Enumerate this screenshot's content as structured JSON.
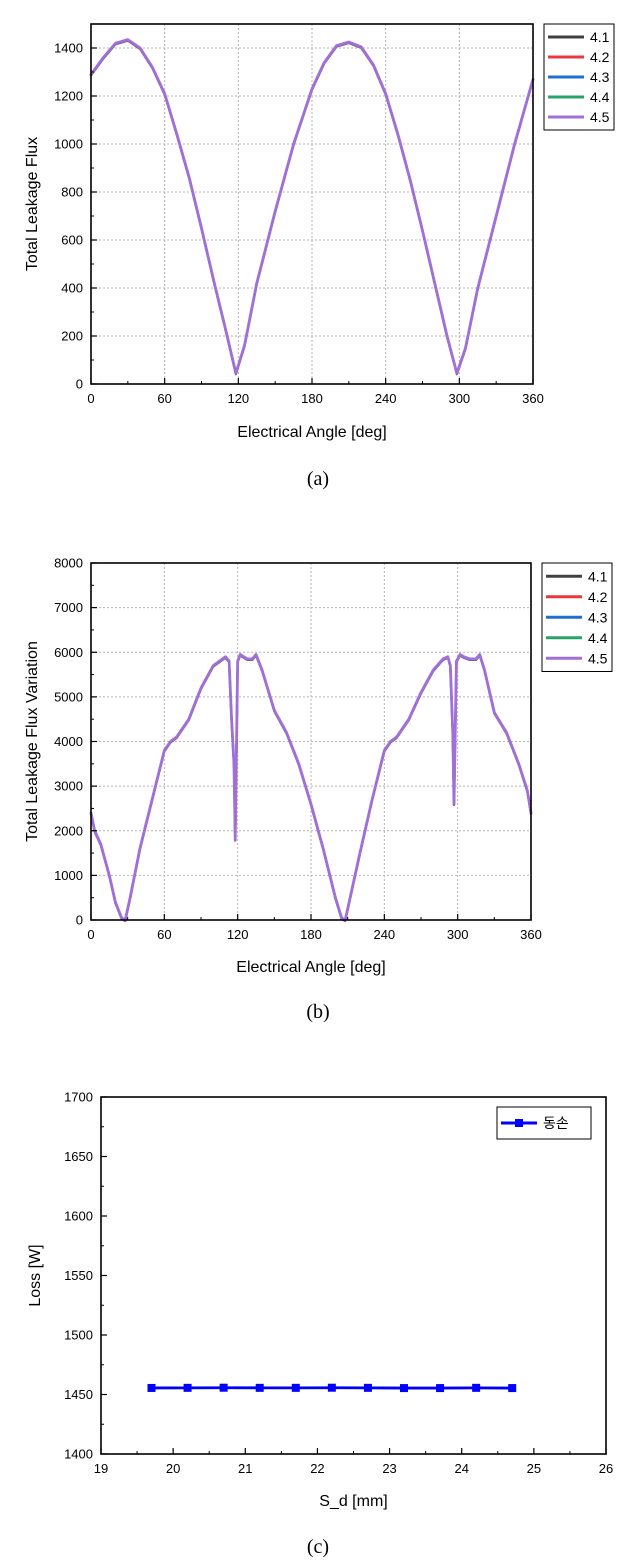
{
  "chart_data": [
    {
      "type": "line",
      "caption": "(a)",
      "xlabel": "Electrical Angle [deg]",
      "ylabel": "Total Leakage Flux",
      "xlim": [
        0,
        360
      ],
      "ylim": [
        0,
        1500
      ],
      "xticks": [
        "0",
        "60",
        "120",
        "180",
        "240",
        "300",
        "360"
      ],
      "yticks": [
        "0",
        "200",
        "400",
        "600",
        "800",
        "1000",
        "1200",
        "1400"
      ],
      "grid": true,
      "legend_position": "outside-right-top",
      "series": [
        {
          "name": "4.1",
          "color": "#404040"
        },
        {
          "name": "4.2",
          "color": "#e8383d"
        },
        {
          "name": "4.3",
          "color": "#1f6fd1"
        },
        {
          "name": "4.4",
          "color": "#2aa36b"
        },
        {
          "name": "4.5",
          "color": "#a070d8"
        }
      ],
      "x": [
        0,
        10,
        20,
        30,
        40,
        50,
        60,
        70,
        80,
        90,
        100,
        110,
        118,
        125,
        135,
        150,
        165,
        180,
        190,
        200,
        210,
        220,
        230,
        240,
        250,
        260,
        270,
        280,
        290,
        298,
        305,
        315,
        330,
        345,
        360
      ],
      "y": [
        1290,
        1360,
        1420,
        1435,
        1400,
        1320,
        1210,
        1040,
        860,
        650,
        430,
        220,
        45,
        160,
        420,
        720,
        1000,
        1230,
        1340,
        1410,
        1425,
        1405,
        1330,
        1210,
        1040,
        850,
        640,
        420,
        200,
        45,
        150,
        400,
        700,
        1000,
        1270
      ]
    },
    {
      "type": "line",
      "caption": "(b)",
      "xlabel": "Electrical Angle [deg]",
      "ylabel": "Total Leakage Flux Variation",
      "xlim": [
        0,
        360
      ],
      "ylim": [
        0,
        8000
      ],
      "xticks": [
        "0",
        "60",
        "120",
        "180",
        "240",
        "300",
        "360"
      ],
      "yticks": [
        "0",
        "1000",
        "2000",
        "3000",
        "4000",
        "5000",
        "6000",
        "7000",
        "8000"
      ],
      "grid": true,
      "legend_position": "outside-right-top",
      "series": [
        {
          "name": "4.1",
          "color": "#404040"
        },
        {
          "name": "4.2",
          "color": "#e8383d"
        },
        {
          "name": "4.3",
          "color": "#1f6fd1"
        },
        {
          "name": "4.4",
          "color": "#2aa36b"
        },
        {
          "name": "4.5",
          "color": "#a070d8"
        }
      ],
      "x": [
        0,
        3,
        8,
        15,
        20,
        25,
        28,
        32,
        40,
        50,
        60,
        65,
        70,
        80,
        90,
        100,
        110,
        113,
        115,
        117,
        118,
        120,
        122,
        125,
        128,
        132,
        135,
        140,
        150,
        160,
        170,
        180,
        190,
        200,
        205,
        208,
        212,
        220,
        230,
        240,
        245,
        250,
        260,
        270,
        280,
        288,
        292,
        294,
        296,
        297,
        299,
        302,
        305,
        310,
        315,
        318,
        322,
        330,
        340,
        350,
        357,
        360
      ],
      "y": [
        2400,
        2000,
        1700,
        1000,
        400,
        50,
        0,
        500,
        1600,
        2700,
        3800,
        4000,
        4100,
        4500,
        5200,
        5700,
        5900,
        5800,
        4500,
        3500,
        1800,
        5800,
        5950,
        5900,
        5850,
        5850,
        5950,
        5600,
        4700,
        4200,
        3500,
        2600,
        1600,
        500,
        50,
        0,
        500,
        1500,
        2700,
        3800,
        4000,
        4100,
        4500,
        5100,
        5600,
        5850,
        5900,
        5700,
        4200,
        2600,
        5800,
        5950,
        5900,
        5850,
        5850,
        5950,
        5600,
        4650,
        4200,
        3500,
        2900,
        2400
      ]
    },
    {
      "type": "line",
      "caption": "(c)",
      "xlabel": "S_d [mm]",
      "ylabel": "Loss [W]",
      "xlim": [
        19,
        26
      ],
      "ylim": [
        1400,
        1700
      ],
      "xticks": [
        "19",
        "20",
        "21",
        "22",
        "23",
        "24",
        "25",
        "26"
      ],
      "yticks": [
        "1400",
        "1450",
        "1500",
        "1550",
        "1600",
        "1650",
        "1700"
      ],
      "grid": false,
      "legend_position": "top-right",
      "series": [
        {
          "name": "동손",
          "color": "#0000ff",
          "marker": "square"
        }
      ],
      "x": [
        19.7,
        20.2,
        20.7,
        21.2,
        21.7,
        22.2,
        22.7,
        23.2,
        23.7,
        24.2,
        24.7
      ],
      "y": [
        1455.5,
        1455.6,
        1455.7,
        1455.6,
        1455.6,
        1455.7,
        1455.6,
        1455.4,
        1455.4,
        1455.6,
        1455.4
      ]
    }
  ]
}
